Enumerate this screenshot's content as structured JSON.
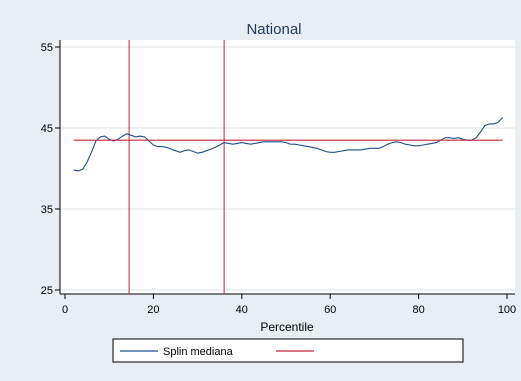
{
  "chart_data": {
    "type": "line",
    "title": "National",
    "xlabel": "Percentile",
    "ylabel": "",
    "xlim": [
      0,
      100
    ],
    "ylim": [
      25,
      55
    ],
    "xticks": [
      0,
      20,
      40,
      60,
      80,
      100
    ],
    "yticks": [
      25,
      35,
      45,
      55
    ],
    "grid": "horizontal",
    "legend_position": "bottom",
    "colors": {
      "page_background": "#e8eef4",
      "plot_background": "#ffffff",
      "title": "#1f3a5a",
      "spline": "#1f4e8c",
      "reference": "#c0283a",
      "grid": "#dde3ea"
    },
    "series": [
      {
        "name": "Splin mediana",
        "color": "#1f4e8c",
        "x": [
          2,
          3,
          4,
          5,
          6,
          7,
          8,
          9,
          10,
          11,
          12,
          13,
          14,
          15,
          16,
          17,
          18,
          19,
          20,
          21,
          22,
          23,
          24,
          25,
          26,
          27,
          28,
          29,
          30,
          31,
          32,
          33,
          34,
          35,
          36,
          37,
          38,
          39,
          40,
          41,
          42,
          43,
          44,
          45,
          46,
          47,
          48,
          49,
          50,
          51,
          52,
          53,
          54,
          55,
          56,
          57,
          58,
          59,
          60,
          61,
          62,
          63,
          64,
          65,
          66,
          67,
          68,
          69,
          70,
          71,
          72,
          73,
          74,
          75,
          76,
          77,
          78,
          79,
          80,
          81,
          82,
          83,
          84,
          85,
          86,
          87,
          88,
          89,
          90,
          91,
          92,
          93,
          94,
          95,
          96,
          97,
          98,
          99
        ],
        "values": [
          39.8,
          39.7,
          39.9,
          40.8,
          42.0,
          43.4,
          43.9,
          44.0,
          43.6,
          43.4,
          43.6,
          44.0,
          44.3,
          44.1,
          43.9,
          44.0,
          43.9,
          43.4,
          42.9,
          42.7,
          42.7,
          42.6,
          42.4,
          42.2,
          42.0,
          42.2,
          42.3,
          42.1,
          41.9,
          42.0,
          42.2,
          42.4,
          42.6,
          42.9,
          43.2,
          43.1,
          43.0,
          43.1,
          43.2,
          43.1,
          43.0,
          43.1,
          43.2,
          43.3,
          43.3,
          43.3,
          43.3,
          43.3,
          43.2,
          43.0,
          43.0,
          42.9,
          42.8,
          42.7,
          42.6,
          42.5,
          42.3,
          42.1,
          42.0,
          42.0,
          42.1,
          42.2,
          42.3,
          42.3,
          42.3,
          42.3,
          42.4,
          42.5,
          42.5,
          42.5,
          42.7,
          43.0,
          43.2,
          43.3,
          43.2,
          43.0,
          42.9,
          42.8,
          42.8,
          42.9,
          43.0,
          43.1,
          43.2,
          43.5,
          43.8,
          43.8,
          43.7,
          43.8,
          43.6,
          43.5,
          43.5,
          43.8,
          44.5,
          45.3,
          45.5,
          45.5,
          45.7,
          46.3
        ]
      },
      {
        "name": "",
        "color": "#c0283a",
        "x": [
          2,
          99
        ],
        "values": [
          43.5,
          43.5
        ]
      }
    ],
    "vertical_lines": [
      {
        "x": 14.5,
        "color": "#c0283a"
      },
      {
        "x": 36,
        "color": "#c0283a"
      }
    ],
    "legend": {
      "entries": [
        {
          "label": "Splin mediana",
          "color": "#1f4e8c"
        },
        {
          "label": "",
          "color": "#c0283a"
        }
      ]
    }
  }
}
